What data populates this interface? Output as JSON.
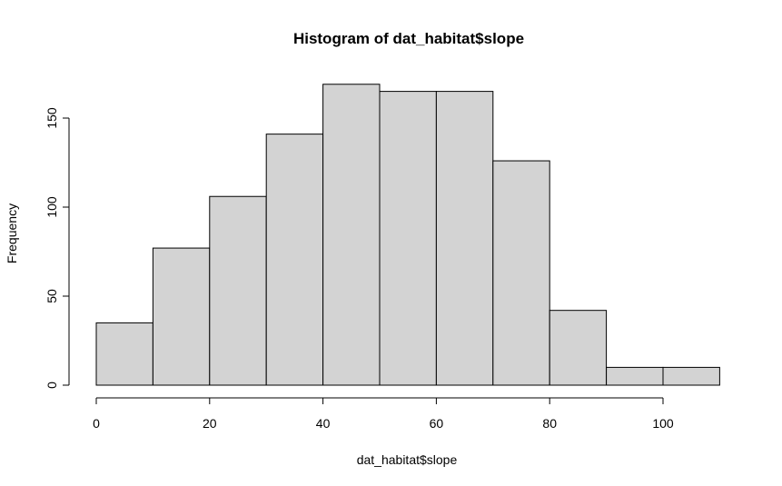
{
  "chart_data": {
    "type": "bar",
    "subtype": "histogram",
    "title": "Histogram of dat_habitat$slope",
    "xlabel": "dat_habitat$slope",
    "ylabel": "Frequency",
    "bins": [
      {
        "x0": 0,
        "x1": 10,
        "count": 35
      },
      {
        "x0": 10,
        "x1": 20,
        "count": 77
      },
      {
        "x0": 20,
        "x1": 30,
        "count": 106
      },
      {
        "x0": 30,
        "x1": 40,
        "count": 141
      },
      {
        "x0": 40,
        "x1": 50,
        "count": 169
      },
      {
        "x0": 50,
        "x1": 60,
        "count": 165
      },
      {
        "x0": 60,
        "x1": 70,
        "count": 165
      },
      {
        "x0": 70,
        "x1": 80,
        "count": 126
      },
      {
        "x0": 80,
        "x1": 90,
        "count": 42
      },
      {
        "x0": 90,
        "x1": 100,
        "count": 10
      },
      {
        "x0": 100,
        "x1": 110,
        "count": 10
      }
    ],
    "xticks": [
      0,
      20,
      40,
      60,
      80,
      100
    ],
    "yticks": [
      0,
      50,
      100,
      150
    ],
    "xlim": [
      0,
      110
    ],
    "ylim": [
      0,
      169
    ],
    "bar_color": "#d3d3d3",
    "edge_color": "#000000",
    "grid": false,
    "legend": "none"
  }
}
